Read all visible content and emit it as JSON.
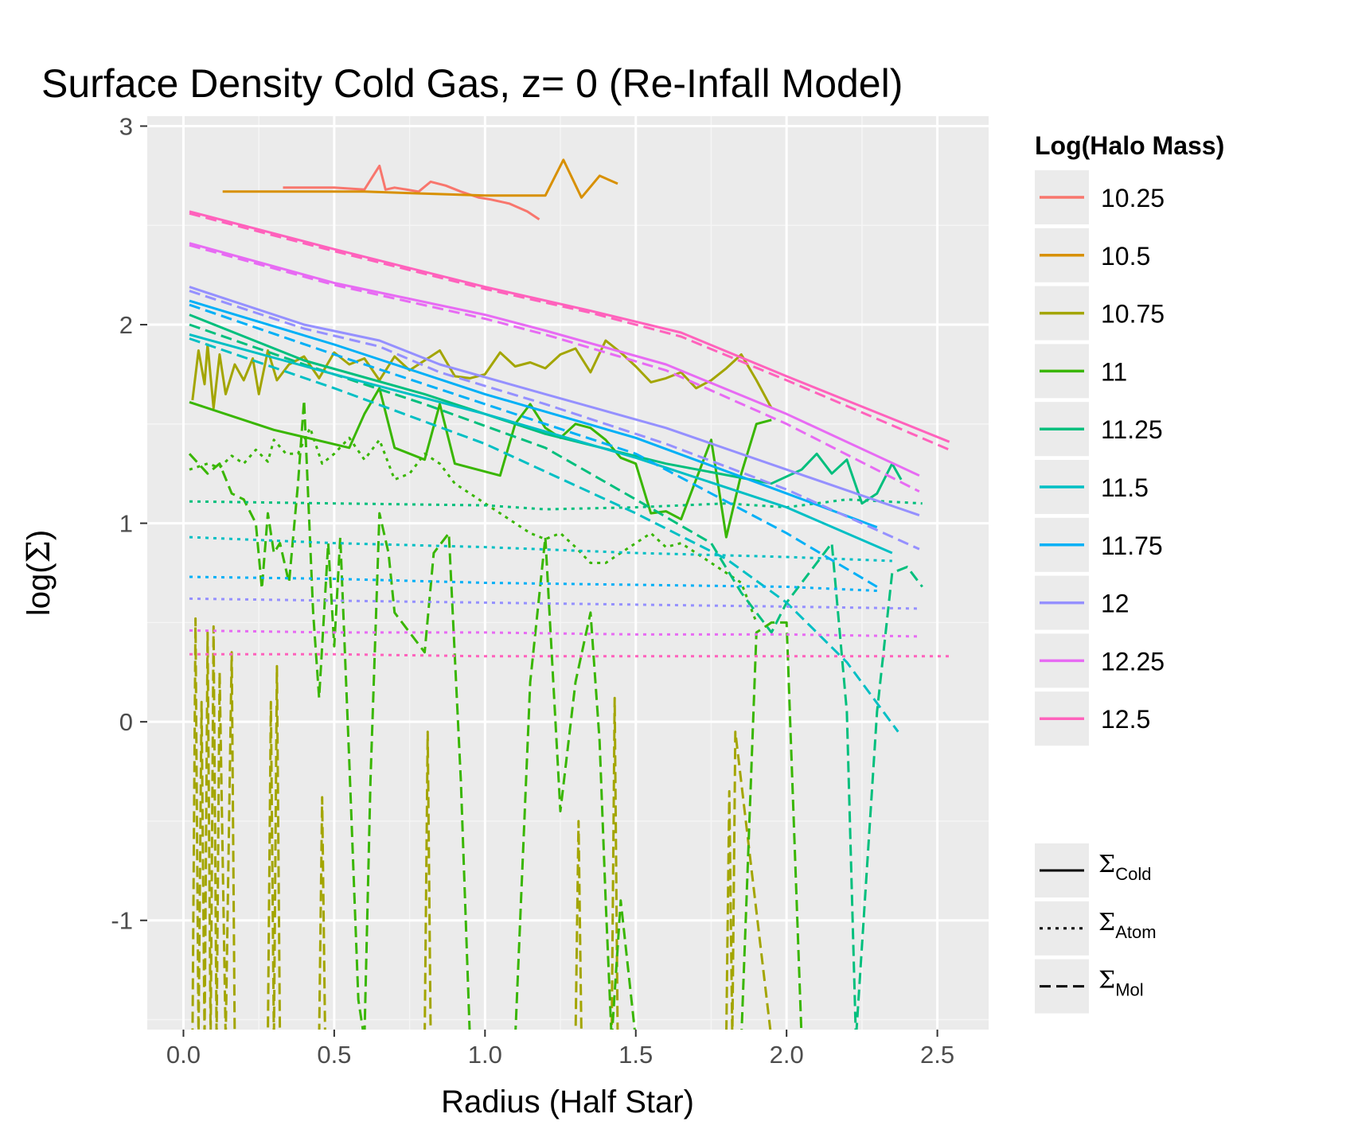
{
  "chart_data": {
    "type": "line",
    "title": "Surface Density Cold Gas, z= 0 (Re-Infall Model)",
    "xlabel": "Radius (Half Star)",
    "ylabel_prefix": "log(",
    "ylabel_symbol": "Σ",
    "ylabel_suffix": ")",
    "xlim": [
      -0.12,
      2.67
    ],
    "ylim": [
      -1.55,
      3.05
    ],
    "x_ticks": [
      0.0,
      0.5,
      1.0,
      1.5,
      2.0,
      2.5
    ],
    "x_tick_labels": [
      "0.0",
      "0.5",
      "1.0",
      "1.5",
      "2.0",
      "2.5"
    ],
    "y_ticks": [
      -1,
      0,
      1,
      2,
      3
    ],
    "y_tick_labels": [
      "-1",
      "0",
      "1",
      "2",
      "3"
    ],
    "grid": true,
    "legend_position": "right",
    "legend_title": "Log(Halo Mass)",
    "legend_items": [
      {
        "label": "10.25",
        "color": "#F8766D"
      },
      {
        "label": "10.5",
        "color": "#D89000"
      },
      {
        "label": "10.75",
        "color": "#A3A500"
      },
      {
        "label": "11",
        "color": "#39B600"
      },
      {
        "label": "11.25",
        "color": "#00BF7D"
      },
      {
        "label": "11.5",
        "color": "#00BFC4"
      },
      {
        "label": "11.75",
        "color": "#00B0F6"
      },
      {
        "label": "12",
        "color": "#9590FF"
      },
      {
        "label": "12.25",
        "color": "#E76BF3"
      },
      {
        "label": "12.5",
        "color": "#FF62BC"
      }
    ],
    "linetype_legend": [
      {
        "symbol": "Σ",
        "subscript": "Cold",
        "dash": "solid"
      },
      {
        "symbol": "Σ",
        "subscript": "Atom",
        "dash": "dotted"
      },
      {
        "symbol": "Σ",
        "subscript": "Mol",
        "dash": "dashed"
      }
    ],
    "series": [
      {
        "mass": "10.25",
        "component": "Cold",
        "color": "#F8766D",
        "dash": "solid",
        "x": [
          0.33,
          0.4,
          0.5,
          0.6,
          0.65,
          0.67,
          0.7,
          0.78,
          0.82,
          0.87,
          0.92,
          0.98,
          1.02,
          1.08,
          1.14,
          1.18
        ],
        "y": [
          2.69,
          2.69,
          2.69,
          2.68,
          2.8,
          2.68,
          2.69,
          2.67,
          2.72,
          2.7,
          2.67,
          2.64,
          2.63,
          2.61,
          2.57,
          2.53
        ]
      },
      {
        "mass": "10.5",
        "component": "Cold",
        "color": "#D89000",
        "dash": "solid",
        "x": [
          0.13,
          0.6,
          1.0,
          1.2,
          1.26,
          1.32,
          1.38,
          1.44
        ],
        "y": [
          2.67,
          2.67,
          2.65,
          2.65,
          2.83,
          2.64,
          2.75,
          2.71
        ]
      },
      {
        "mass": "10.75",
        "component": "Cold",
        "color": "#A3A500",
        "dash": "solid",
        "x": [
          0.03,
          0.05,
          0.07,
          0.08,
          0.1,
          0.12,
          0.14,
          0.17,
          0.2,
          0.23,
          0.25,
          0.28,
          0.31,
          0.35,
          0.4,
          0.45,
          0.5,
          0.55,
          0.6,
          0.65,
          0.7,
          0.75,
          0.8,
          0.85,
          0.9,
          0.95,
          1.0,
          1.05,
          1.1,
          1.15,
          1.2,
          1.25,
          1.3,
          1.35,
          1.4,
          1.45,
          1.5,
          1.55,
          1.6,
          1.65,
          1.7,
          1.75,
          1.8,
          1.85,
          1.9,
          1.95
        ],
        "y": [
          1.62,
          1.87,
          1.7,
          1.9,
          1.58,
          1.85,
          1.65,
          1.8,
          1.72,
          1.83,
          1.65,
          1.87,
          1.72,
          1.8,
          1.84,
          1.73,
          1.86,
          1.8,
          1.83,
          1.72,
          1.84,
          1.77,
          1.82,
          1.87,
          1.74,
          1.73,
          1.75,
          1.86,
          1.79,
          1.81,
          1.78,
          1.85,
          1.88,
          1.76,
          1.92,
          1.86,
          1.79,
          1.71,
          1.73,
          1.76,
          1.68,
          1.72,
          1.78,
          1.85,
          1.72,
          1.58
        ]
      },
      {
        "mass": "10.75",
        "component": "Mol",
        "color": "#A3A500",
        "dash": "dashed",
        "x": [
          0.03,
          0.04,
          0.05,
          0.06,
          0.07,
          0.08,
          0.09,
          0.1,
          0.11,
          0.12,
          0.14,
          0.16,
          0.17,
          0.18,
          0.28,
          0.29,
          0.3,
          0.31,
          0.32,
          0.33,
          0.45,
          0.46,
          0.47,
          0.8,
          0.81,
          0.82,
          0.83,
          1.3,
          1.31,
          1.32,
          1.33,
          1.42,
          1.43,
          1.44,
          1.45,
          1.8,
          1.81,
          1.82,
          1.83,
          1.95
        ],
        "y": [
          -1.6,
          0.52,
          -1.6,
          0.1,
          -1.6,
          0.45,
          -1.6,
          0.48,
          -1.6,
          0.25,
          -1.6,
          0.35,
          -1.6,
          -1.6,
          -1.6,
          0.1,
          -1.6,
          0.28,
          -1.6,
          -1.6,
          -1.6,
          -0.38,
          -1.6,
          -1.6,
          -0.05,
          -1.6,
          -1.6,
          -1.6,
          -0.5,
          -1.6,
          -1.6,
          -1.6,
          0.12,
          -1.6,
          -1.6,
          -1.6,
          -0.35,
          -1.6,
          -0.05,
          -1.6
        ]
      },
      {
        "mass": "11",
        "component": "Cold",
        "color": "#39B600",
        "dash": "solid",
        "x": [
          0.02,
          0.3,
          0.55,
          0.6,
          0.65,
          0.7,
          0.8,
          0.85,
          0.9,
          1.05,
          1.1,
          1.15,
          1.2,
          1.25,
          1.3,
          1.35,
          1.4,
          1.45,
          1.5,
          1.55,
          1.6,
          1.65,
          1.7,
          1.75,
          1.8,
          1.85,
          1.9,
          1.95
        ],
        "y": [
          1.61,
          1.47,
          1.38,
          1.55,
          1.68,
          1.38,
          1.32,
          1.6,
          1.3,
          1.24,
          1.5,
          1.6,
          1.48,
          1.43,
          1.5,
          1.48,
          1.42,
          1.33,
          1.3,
          1.05,
          1.06,
          1.02,
          1.22,
          1.42,
          0.93,
          1.25,
          1.5,
          1.52
        ]
      },
      {
        "mass": "11",
        "component": "Atom",
        "color": "#39B600",
        "dash": "dotted",
        "x": [
          0.02,
          0.08,
          0.12,
          0.16,
          0.2,
          0.24,
          0.28,
          0.3,
          0.34,
          0.38,
          0.42,
          0.46,
          0.5,
          0.55,
          0.6,
          0.65,
          0.7,
          0.75,
          0.8,
          0.85,
          0.9,
          0.95,
          1.0,
          1.05,
          1.1,
          1.15,
          1.2,
          1.25,
          1.3,
          1.35,
          1.4,
          1.45,
          1.5,
          1.55,
          1.6,
          1.65,
          1.7,
          1.75,
          1.8,
          1.85,
          1.9
        ],
        "y": [
          1.27,
          1.3,
          1.28,
          1.34,
          1.3,
          1.37,
          1.31,
          1.42,
          1.35,
          1.35,
          1.48,
          1.3,
          1.35,
          1.43,
          1.32,
          1.42,
          1.22,
          1.25,
          1.35,
          1.3,
          1.2,
          1.15,
          1.1,
          1.05,
          1.0,
          0.95,
          0.92,
          0.95,
          0.88,
          0.8,
          0.8,
          0.85,
          0.9,
          0.95,
          0.88,
          0.9,
          0.85,
          0.8,
          0.75,
          0.7,
          0.5
        ]
      },
      {
        "mass": "11",
        "component": "Mol",
        "color": "#39B600",
        "dash": "dashed",
        "x": [
          0.02,
          0.08,
          0.12,
          0.16,
          0.2,
          0.24,
          0.26,
          0.28,
          0.3,
          0.32,
          0.35,
          0.38,
          0.4,
          0.43,
          0.45,
          0.48,
          0.5,
          0.52,
          0.55,
          0.58,
          0.6,
          0.62,
          0.65,
          0.68,
          0.7,
          0.75,
          0.8,
          0.83,
          0.88,
          0.92,
          0.95,
          0.98,
          1.05,
          1.1,
          1.15,
          1.2,
          1.25,
          1.3,
          1.35,
          1.38,
          1.4,
          1.42,
          1.45,
          1.5,
          1.55,
          1.6,
          1.8,
          1.85,
          1.9,
          1.95,
          2.0,
          2.05
        ],
        "y": [
          1.35,
          1.25,
          1.3,
          1.15,
          1.12,
          1.0,
          0.67,
          1.05,
          0.85,
          0.9,
          0.7,
          1.2,
          1.62,
          0.55,
          0.12,
          0.9,
          0.38,
          0.93,
          -0.2,
          -1.4,
          -1.6,
          -0.3,
          1.05,
          0.85,
          0.55,
          0.45,
          0.35,
          0.85,
          0.95,
          -0.3,
          -1.6,
          -1.6,
          -1.6,
          -1.6,
          0.2,
          0.93,
          -0.45,
          0.2,
          0.55,
          -0.1,
          -0.9,
          -1.6,
          -0.9,
          -1.6,
          -1.6,
          -1.6,
          -1.6,
          -1.6,
          0.45,
          0.5,
          0.5,
          -1.6
        ]
      },
      {
        "mass": "11.25",
        "component": "Cold",
        "color": "#00BF7D",
        "dash": "solid",
        "x": [
          0.02,
          0.4,
          0.8,
          1.2,
          1.6,
          1.95,
          2.05,
          2.1,
          2.15,
          2.2,
          2.25,
          2.3,
          2.35,
          2.38
        ],
        "y": [
          2.05,
          1.82,
          1.65,
          1.45,
          1.3,
          1.2,
          1.27,
          1.35,
          1.25,
          1.32,
          1.1,
          1.15,
          1.3,
          1.22
        ]
      },
      {
        "mass": "11.25",
        "component": "Atom",
        "color": "#00BF7D",
        "dash": "dotted",
        "x": [
          0.02,
          0.5,
          1.0,
          1.2,
          1.5,
          1.8,
          2.0,
          2.2,
          2.45
        ],
        "y": [
          1.11,
          1.1,
          1.09,
          1.07,
          1.08,
          1.1,
          1.08,
          1.12,
          1.1
        ]
      },
      {
        "mass": "11.25",
        "component": "Mol",
        "color": "#00BF7D",
        "dash": "dashed",
        "x": [
          0.02,
          0.4,
          0.8,
          1.2,
          1.5,
          1.75,
          1.85,
          1.95,
          2.0,
          2.1,
          2.15,
          2.2,
          2.23,
          2.3,
          2.35,
          2.4,
          2.45
        ],
        "y": [
          2.0,
          1.8,
          1.6,
          1.38,
          1.12,
          0.9,
          0.65,
          0.45,
          0.6,
          0.8,
          0.9,
          0.05,
          -1.6,
          0.05,
          0.75,
          0.78,
          0.68
        ]
      },
      {
        "mass": "11.5",
        "component": "Cold",
        "color": "#00BFC4",
        "dash": "solid",
        "x": [
          0.02,
          0.5,
          1.0,
          1.5,
          2.0,
          2.35
        ],
        "y": [
          1.95,
          1.75,
          1.55,
          1.33,
          1.08,
          0.85
        ]
      },
      {
        "mass": "11.5",
        "component": "Atom",
        "color": "#00BFC4",
        "dash": "dotted",
        "x": [
          0.02,
          0.5,
          1.0,
          1.5,
          2.0,
          2.35
        ],
        "y": [
          0.93,
          0.9,
          0.88,
          0.85,
          0.83,
          0.81
        ]
      },
      {
        "mass": "11.5",
        "component": "Mol",
        "color": "#00BFC4",
        "dash": "dashed",
        "x": [
          0.02,
          0.5,
          1.0,
          1.5,
          1.8,
          2.0,
          2.2,
          2.37
        ],
        "y": [
          1.93,
          1.68,
          1.4,
          1.05,
          0.82,
          0.6,
          0.3,
          -0.05
        ]
      },
      {
        "mass": "11.75",
        "component": "Cold",
        "color": "#00B0F6",
        "dash": "solid",
        "x": [
          0.02,
          0.5,
          1.0,
          1.5,
          2.0,
          2.3
        ],
        "y": [
          2.12,
          1.9,
          1.65,
          1.43,
          1.15,
          0.98
        ]
      },
      {
        "mass": "11.75",
        "component": "Atom",
        "color": "#00B0F6",
        "dash": "dotted",
        "x": [
          0.02,
          0.5,
          1.0,
          1.5,
          2.0,
          2.3
        ],
        "y": [
          0.73,
          0.72,
          0.7,
          0.69,
          0.68,
          0.66
        ]
      },
      {
        "mass": "11.75",
        "component": "Mol",
        "color": "#00B0F6",
        "dash": "dashed",
        "x": [
          0.02,
          0.5,
          1.0,
          1.5,
          2.0,
          2.3
        ],
        "y": [
          2.1,
          1.85,
          1.6,
          1.35,
          0.95,
          0.68
        ]
      },
      {
        "mass": "12",
        "component": "Cold",
        "color": "#9590FF",
        "dash": "solid",
        "x": [
          0.02,
          0.4,
          0.65,
          0.85,
          1.2,
          1.6,
          2.0,
          2.44
        ],
        "y": [
          2.19,
          2.0,
          1.92,
          1.8,
          1.65,
          1.48,
          1.27,
          1.04
        ]
      },
      {
        "mass": "12",
        "component": "Atom",
        "color": "#9590FF",
        "dash": "dotted",
        "x": [
          0.02,
          0.5,
          1.0,
          1.5,
          2.0,
          2.44
        ],
        "y": [
          0.62,
          0.61,
          0.6,
          0.59,
          0.58,
          0.57
        ]
      },
      {
        "mass": "12",
        "component": "Mol",
        "color": "#9590FF",
        "dash": "dashed",
        "x": [
          0.02,
          0.4,
          0.65,
          0.85,
          1.2,
          1.6,
          2.0,
          2.44
        ],
        "y": [
          2.17,
          1.98,
          1.89,
          1.76,
          1.6,
          1.4,
          1.17,
          0.87
        ]
      },
      {
        "mass": "12.25",
        "component": "Cold",
        "color": "#E76BF3",
        "dash": "solid",
        "x": [
          0.02,
          0.5,
          1.0,
          1.2,
          1.6,
          2.0,
          2.44
        ],
        "y": [
          2.41,
          2.21,
          2.05,
          1.97,
          1.8,
          1.55,
          1.24
        ]
      },
      {
        "mass": "12.25",
        "component": "Atom",
        "color": "#E76BF3",
        "dash": "dotted",
        "x": [
          0.02,
          0.5,
          1.0,
          1.5,
          2.0,
          2.44
        ],
        "y": [
          0.46,
          0.45,
          0.45,
          0.44,
          0.44,
          0.43
        ]
      },
      {
        "mass": "12.25",
        "component": "Mol",
        "color": "#E76BF3",
        "dash": "dashed",
        "x": [
          0.02,
          0.5,
          1.0,
          1.2,
          1.6,
          2.0,
          2.44
        ],
        "y": [
          2.4,
          2.2,
          2.03,
          1.95,
          1.77,
          1.5,
          1.16
        ]
      },
      {
        "mass": "12.5",
        "component": "Cold",
        "color": "#FF62BC",
        "dash": "solid",
        "x": [
          0.02,
          0.5,
          1.0,
          1.35,
          1.65,
          2.0,
          2.54
        ],
        "y": [
          2.57,
          2.38,
          2.19,
          2.07,
          1.96,
          1.74,
          1.41
        ]
      },
      {
        "mass": "12.5",
        "component": "Atom",
        "color": "#FF62BC",
        "dash": "dotted",
        "x": [
          0.02,
          0.5,
          1.0,
          1.5,
          2.0,
          2.54
        ],
        "y": [
          0.34,
          0.34,
          0.33,
          0.33,
          0.33,
          0.33
        ]
      },
      {
        "mass": "12.5",
        "component": "Mol",
        "color": "#FF62BC",
        "dash": "dashed",
        "x": [
          0.02,
          0.5,
          1.0,
          1.35,
          1.65,
          2.0,
          2.54
        ],
        "y": [
          2.56,
          2.37,
          2.18,
          2.06,
          1.94,
          1.72,
          1.37
        ]
      }
    ]
  }
}
